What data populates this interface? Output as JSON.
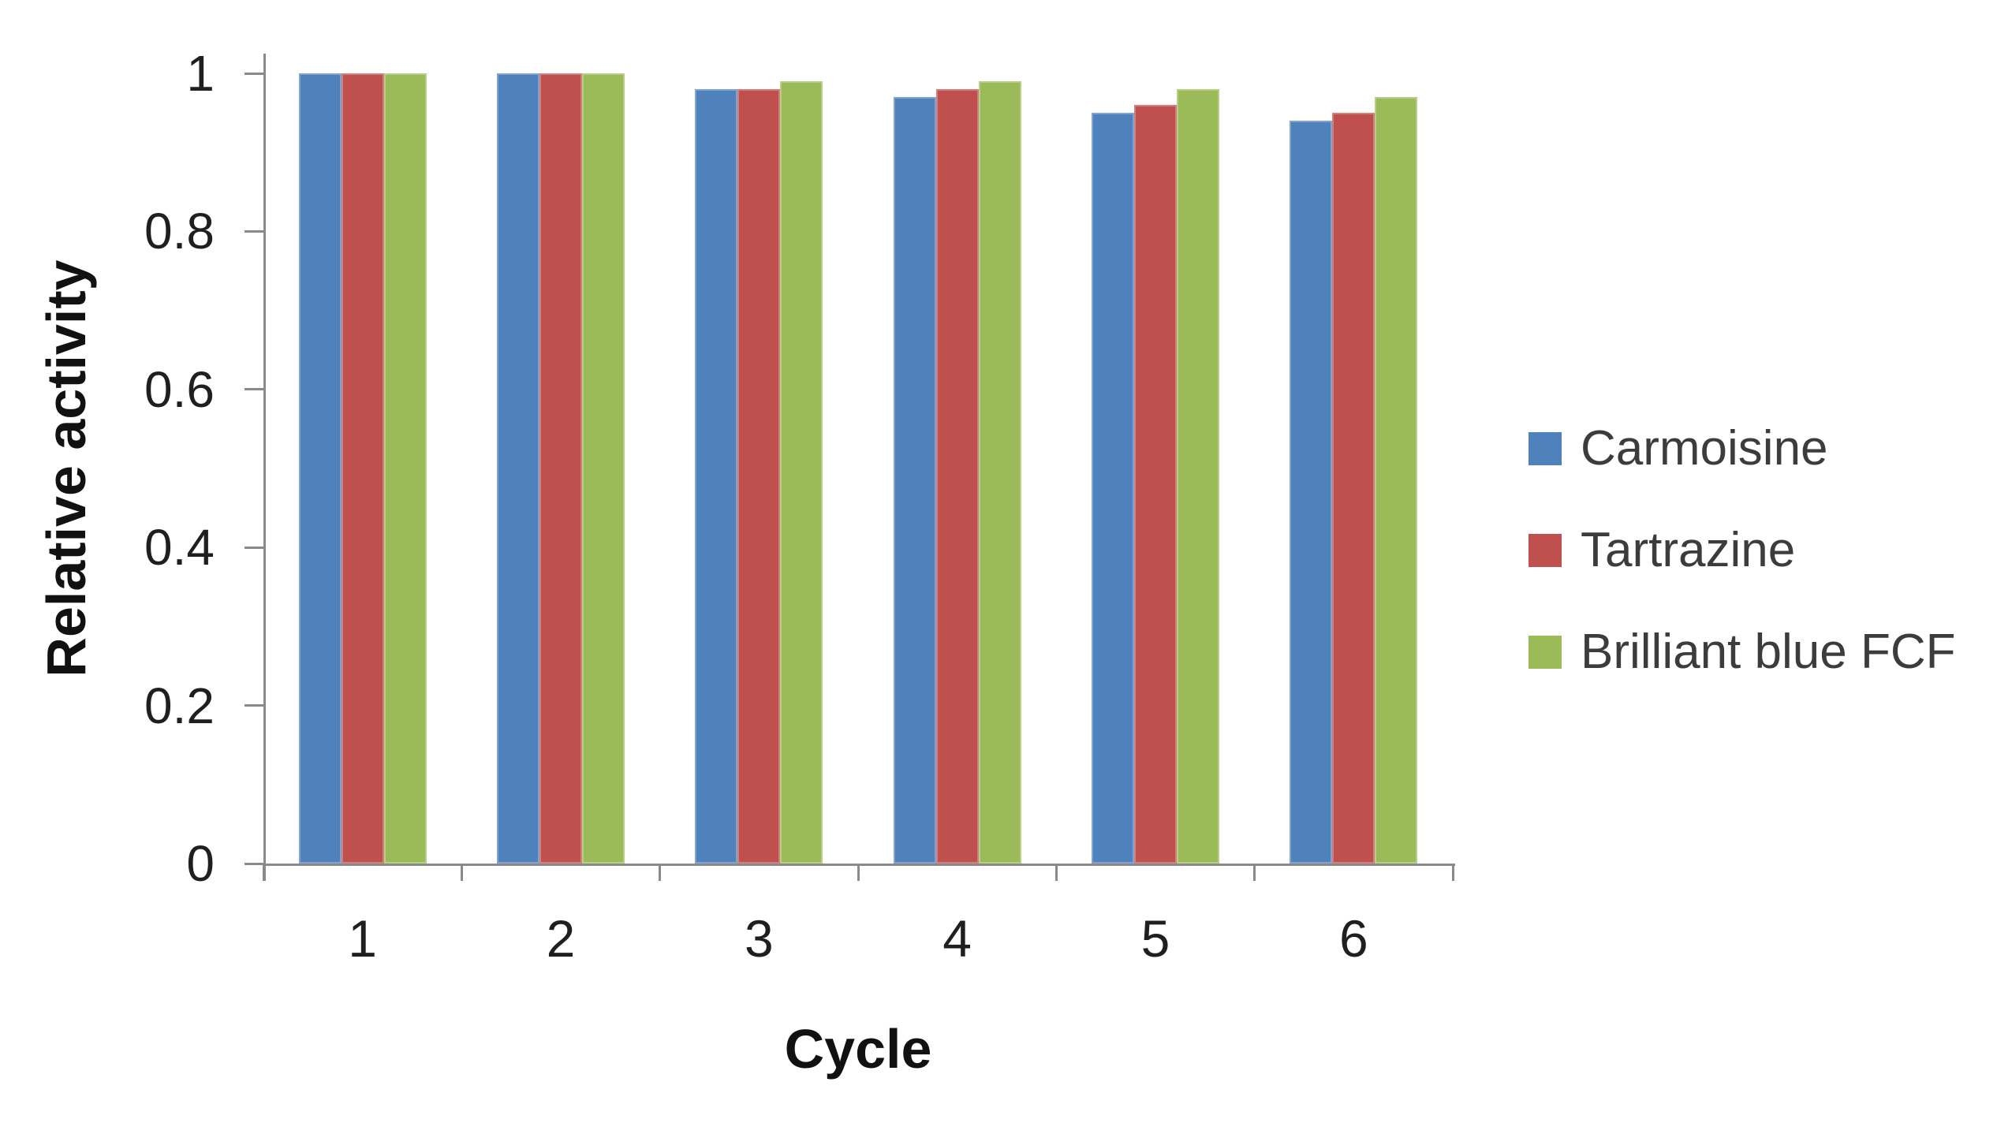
{
  "chart_data": {
    "type": "bar",
    "title": "",
    "xlabel": "Cycle",
    "ylabel": "Relative activity",
    "categories": [
      "1",
      "2",
      "3",
      "4",
      "5",
      "6"
    ],
    "series": [
      {
        "name": "Carmoisine",
        "color": "#4F81BD",
        "values": [
          1.0,
          1.0,
          0.98,
          0.97,
          0.95,
          0.94
        ]
      },
      {
        "name": "Tartrazine",
        "color": "#C0504D",
        "values": [
          1.0,
          1.0,
          0.98,
          0.98,
          0.96,
          0.95
        ]
      },
      {
        "name": "Brilliant blue FCF",
        "color": "#9BBB59",
        "values": [
          1.0,
          1.0,
          0.99,
          0.99,
          0.98,
          0.97
        ]
      }
    ],
    "ylim": [
      0,
      1
    ],
    "yticks": [
      0,
      0.2,
      0.4,
      0.6,
      0.8,
      1
    ],
    "ytick_labels": [
      "0",
      "0.2",
      "0.4",
      "0.6",
      "0.8",
      "1"
    ],
    "grid": false,
    "legend_position": "right",
    "axis_color": "#8A8A8A"
  }
}
